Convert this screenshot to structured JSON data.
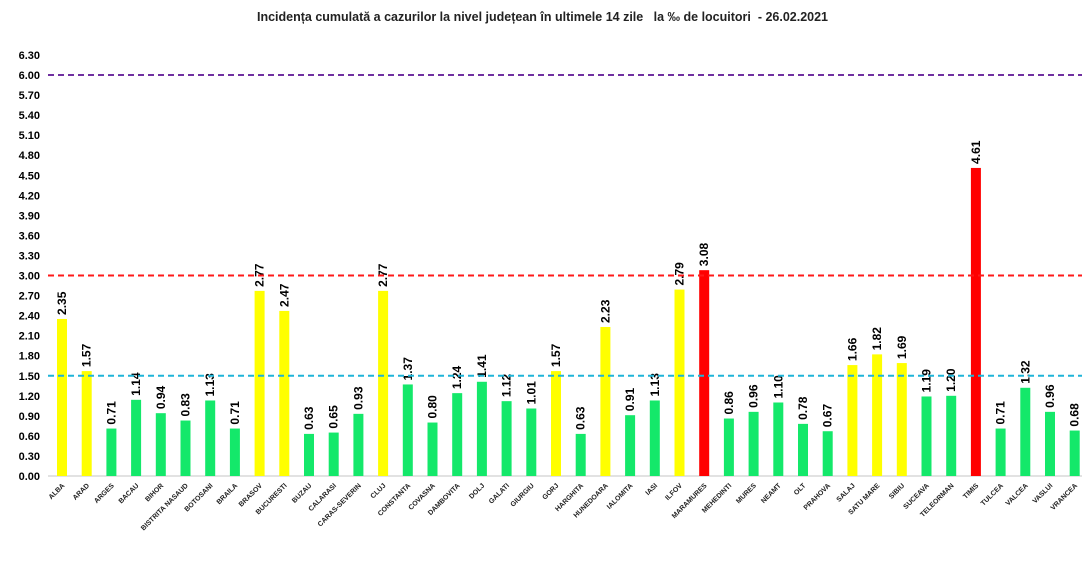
{
  "chart_data": {
    "type": "bar",
    "title": "Incidența cumulată a cazurilor la nivel județean în ultimele 14 zile   la ‰ de locuitori  - 26.02.2021",
    "xlabel": "",
    "ylabel": "",
    "ylim": [
      0,
      6.3
    ],
    "yticks": [
      "0.00",
      "0.30",
      "0.60",
      "0.90",
      "1.20",
      "1.50",
      "1.80",
      "2.10",
      "2.40",
      "2.70",
      "3.00",
      "3.30",
      "3.60",
      "3.90",
      "4.20",
      "4.50",
      "4.80",
      "5.10",
      "5.40",
      "5.70",
      "6.00",
      "6.30"
    ],
    "categories": [
      "ALBA",
      "ARAD",
      "ARGES",
      "BACAU",
      "BIHOR",
      "BISTRITA NASAUD",
      "BOTOSANI",
      "BRAILA",
      "BRASOV",
      "BUCURESTI",
      "BUZAU",
      "CALARASI",
      "CARAS-SEVERIN",
      "CLUJ",
      "CONSTANTA",
      "COVASNA",
      "DAMBOVITA",
      "DOLJ",
      "GALATI",
      "GIURGIU",
      "GORJ",
      "HARGHITA",
      "HUNEDOARA",
      "IALOMITA",
      "IASI",
      "ILFOV",
      "MARAMURES",
      "MEHEDINTI",
      "MURES",
      "NEAMT",
      "OLT",
      "PRAHOVA",
      "SALAJ",
      "SATU MARE",
      "SIBIU",
      "SUCEAVA",
      "TELEORMAN",
      "TIMIS",
      "TULCEA",
      "VALCEA",
      "VASLUI",
      "VRANCEA"
    ],
    "values": [
      2.35,
      1.57,
      0.71,
      1.14,
      0.94,
      0.83,
      1.13,
      0.71,
      2.77,
      2.47,
      0.63,
      0.65,
      0.93,
      2.77,
      1.37,
      0.8,
      1.24,
      1.41,
      1.12,
      1.01,
      1.57,
      0.63,
      2.23,
      0.91,
      1.13,
      2.79,
      3.08,
      0.86,
      0.96,
      1.1,
      0.78,
      0.67,
      1.66,
      1.82,
      1.69,
      1.19,
      1.2,
      4.61,
      0.71,
      1.32,
      0.96,
      0.68
    ],
    "thresholds": [
      {
        "value": 1.5,
        "color": "#1fb4d8"
      },
      {
        "value": 3.0,
        "color": "#ff1a1a"
      },
      {
        "value": 6.0,
        "color": "#7030a0"
      }
    ],
    "colors": {
      "low": "#14e86a",
      "mid": "#ffff00",
      "high": "#ff0000"
    },
    "grid": false,
    "legend": "none"
  }
}
